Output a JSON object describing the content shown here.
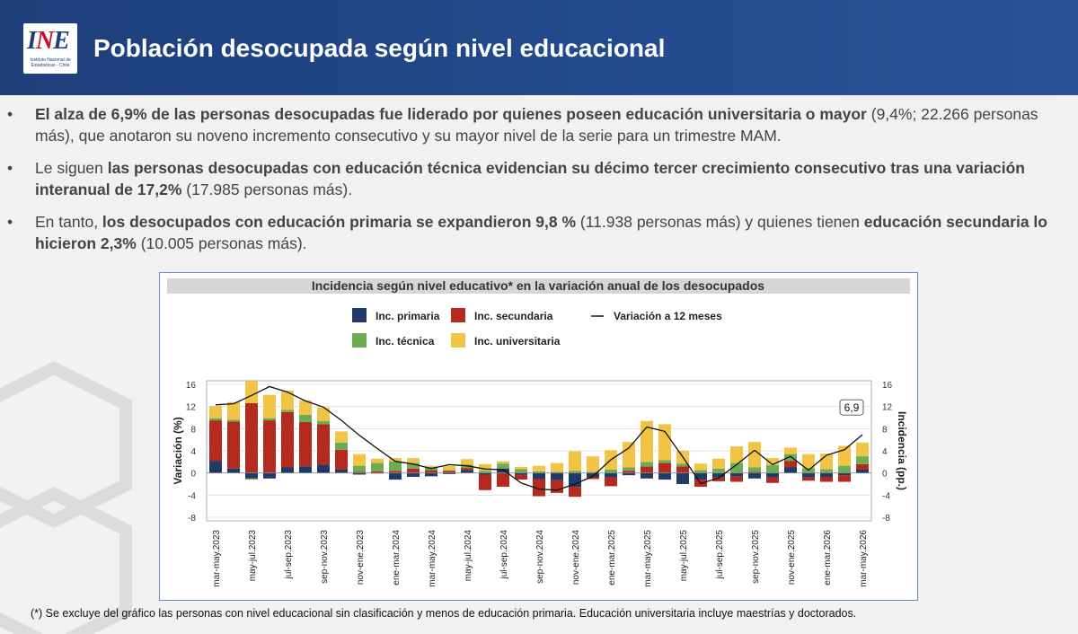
{
  "header": {
    "title": "Población desocupada según nivel educacional",
    "logo_text": "INE",
    "logo_sub": "Instituto Nacional de Estadísticas - Chile"
  },
  "bullets": [
    {
      "parts": [
        {
          "t": "El alza de 6,9% de las personas desocupadas fue liderado por quienes poseen educación universitaria o mayor",
          "b": true
        },
        {
          "t": " (9,4%; 22.266 personas más), que anotaron su noveno incremento consecutivo y su mayor nivel de la serie para un trimestre MAM.",
          "b": false
        }
      ]
    },
    {
      "parts": [
        {
          "t": "Le siguen ",
          "b": false
        },
        {
          "t": "las personas desocupadas con educación técnica evidencian su décimo tercer crecimiento consecutivo tras una variación interanual de 17,2%",
          "b": true
        },
        {
          "t": " (17.985 personas más).",
          "b": false
        }
      ]
    },
    {
      "parts": [
        {
          "t": "En tanto, ",
          "b": false
        },
        {
          "t": "los desocupados con educación primaria se expandieron 9,8 %",
          "b": true
        },
        {
          "t": " (11.938 personas más) y quienes tienen ",
          "b": false
        },
        {
          "t": "educación secundaria lo hicieron 2,3%",
          "b": true
        },
        {
          "t": " (10.005 personas más).",
          "b": false
        }
      ]
    }
  ],
  "footnote": "(*) Se excluye del gráfico las personas con nivel educacional sin clasificación y menos de educación primaria. Educación universitaria incluye maestrías y doctorados.",
  "chart_data": {
    "type": "bar",
    "stacked": true,
    "title": "Incidencia según nivel educativo* en la variación anual de los desocupados",
    "ylabel": "Variación (%)",
    "y2label": "Incidencia (pp.)",
    "ylim": [
      -8,
      16
    ],
    "yticks": [
      -8,
      -4,
      0,
      4,
      8,
      12,
      16
    ],
    "grid": true,
    "legend_position": "top",
    "annotation": {
      "label": "6,9",
      "index": 36
    },
    "x_tick_labels_shown": [
      "mar-may.2023",
      "may-jul.2023",
      "jul-sep.2023",
      "sep-nov.2023",
      "nov-ene.2023",
      "ene-mar.2024",
      "mar-may.2024",
      "may-jul.2024",
      "jul-sep.2024",
      "sep-nov.2024",
      "nov-ene.2024",
      "ene-mar.2025",
      "mar-may.2025",
      "may-jul.2025",
      "jul-sep.2025",
      "sep-nov.2025",
      "nov-ene.2025",
      "ene-mar.2026",
      "mar-may.2026"
    ],
    "categories": [
      "mar-may.2023",
      "abr-jun.2023",
      "may-jul.2023",
      "jun-ago.2023",
      "jul-sep.2023",
      "ago-oct.2023",
      "sep-nov.2023",
      "oct-dic.2023",
      "nov-ene.2023",
      "dic-feb.2024",
      "ene-mar.2024",
      "feb-abr.2024",
      "mar-may.2024",
      "abr-jun.2024",
      "may-jul.2024",
      "jun-ago.2024",
      "jul-sep.2024",
      "ago-oct.2024",
      "sep-nov.2024",
      "oct-dic.2024",
      "nov-ene.2024",
      "dic-feb.2025",
      "ene-mar.2025",
      "feb-abr.2025",
      "mar-may.2025",
      "abr-jun.2025",
      "may-jul.2025",
      "jun-ago.2025",
      "jul-sep.2025",
      "ago-oct.2025",
      "sep-nov.2025",
      "oct-dic.2025",
      "nov-ene.2025",
      "dic-feb.2026",
      "ene-mar.2026",
      "feb-abr.2026",
      "mar-may.2026"
    ],
    "series": [
      {
        "name": "Inc. primaria",
        "type": "bar",
        "color": "#1f3a68",
        "values": [
          2.2,
          0.8,
          -1.0,
          -1.0,
          1.0,
          1.2,
          1.5,
          0.6,
          -0.3,
          -0.1,
          -1.2,
          -0.7,
          -0.6,
          -0.2,
          0.5,
          -0.3,
          0.8,
          -0.3,
          -1.1,
          -1.3,
          -2.5,
          -0.7,
          -0.8,
          -0.4,
          -1.0,
          -1.2,
          -2.0,
          -1.2,
          -0.8,
          -0.6,
          -1.0,
          -0.8,
          1.0,
          -0.8,
          -0.7,
          -0.4,
          0.6
        ]
      },
      {
        "name": "Inc. secundaria",
        "type": "bar",
        "color": "#b52a1e",
        "values": [
          7.3,
          8.5,
          12.6,
          9.5,
          10.0,
          8.0,
          7.3,
          3.6,
          0.2,
          0.3,
          0.4,
          0.8,
          0.5,
          0.4,
          0.4,
          -2.8,
          -2.5,
          -0.9,
          -3.1,
          -2.3,
          -1.8,
          -0.4,
          -1.6,
          0.4,
          1.2,
          1.8,
          1.2,
          -1.3,
          -0.7,
          -1.0,
          0.2,
          -1.0,
          1.2,
          -0.6,
          -0.9,
          -1.2,
          1.0
        ]
      },
      {
        "name": "Inc. técnica",
        "type": "bar",
        "color": "#6cad53",
        "values": [
          0.4,
          0.3,
          -0.2,
          0.4,
          0.4,
          1.3,
          0.6,
          1.3,
          1.1,
          1.5,
          1.7,
          1.0,
          0.6,
          0.1,
          0.6,
          0.4,
          0.9,
          0.7,
          0.3,
          0.2,
          0.4,
          0.2,
          0.6,
          0.6,
          0.8,
          0.5,
          0.5,
          0.5,
          0.8,
          1.8,
          0.8,
          1.4,
          1.2,
          0.9,
          0.7,
          1.3,
          1.4
        ]
      },
      {
        "name": "Inc. universitaria",
        "type": "bar",
        "color": "#f2c446",
        "values": [
          2.2,
          3.2,
          4.0,
          4.2,
          3.5,
          2.6,
          2.4,
          2.0,
          2.1,
          0.8,
          0.6,
          0.9,
          0.2,
          0.8,
          1.0,
          1.2,
          0.4,
          0.4,
          1.0,
          1.6,
          3.5,
          2.8,
          3.5,
          4.6,
          7.4,
          6.5,
          2.3,
          1.2,
          1.8,
          3.0,
          4.6,
          1.3,
          1.2,
          2.5,
          2.8,
          3.6,
          2.5
        ]
      },
      {
        "name": "Variación a 12 meses",
        "type": "line",
        "color": "#111111",
        "values": [
          12.3,
          12.5,
          14.0,
          15.6,
          14.6,
          13.0,
          11.9,
          9.5,
          6.8,
          4.4,
          2.1,
          1.6,
          0.8,
          1.5,
          1.3,
          0.7,
          0.6,
          -1.8,
          -2.9,
          -3.1,
          -2.0,
          -0.6,
          2.4,
          4.5,
          8.3,
          7.5,
          2.9,
          -1.9,
          -0.9,
          1.5,
          4.1,
          1.5,
          3.0,
          0.5,
          3.2,
          4.2,
          6.9
        ]
      }
    ]
  }
}
